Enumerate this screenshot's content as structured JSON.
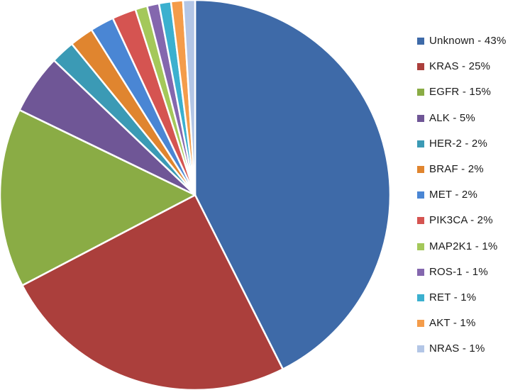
{
  "chart_data": {
    "type": "pie",
    "start_angle_deg": 0,
    "direction": "clockwise",
    "legend_position": "right",
    "slices": [
      {
        "label": "Unknown - 43%",
        "category": "Unknown",
        "value": 43,
        "color": "#3e6aa8"
      },
      {
        "label": "KRAS - 25%",
        "category": "KRAS",
        "value": 25,
        "color": "#ab3f3c"
      },
      {
        "label": "EGFR - 15%",
        "category": "EGFR",
        "value": 15,
        "color": "#8aac45"
      },
      {
        "label": "ALK - 5%",
        "category": "ALK",
        "value": 5,
        "color": "#6f5696"
      },
      {
        "label": "HER-2 - 2%",
        "category": "HER-2",
        "value": 2,
        "color": "#3b9ab5"
      },
      {
        "label": "BRAF - 2%",
        "category": "BRAF",
        "value": 2,
        "color": "#e0852f"
      },
      {
        "label": "MET - 2%",
        "category": "MET",
        "value": 2,
        "color": "#4a86d4"
      },
      {
        "label": "PIK3CA - 2%",
        "category": "PIK3CA",
        "value": 2,
        "color": "#d55451"
      },
      {
        "label": "MAP2K1 - 1%",
        "category": "MAP2K1",
        "value": 1,
        "color": "#a4c85a"
      },
      {
        "label": "ROS-1 - 1%",
        "category": "ROS-1",
        "value": 1,
        "color": "#8467ae"
      },
      {
        "label": "RET - 1%",
        "category": "RET",
        "value": 1,
        "color": "#3bb0cf"
      },
      {
        "label": "AKT - 1%",
        "category": "AKT",
        "value": 1,
        "color": "#f49c4a"
      },
      {
        "label": "NRAS - 1%",
        "category": "NRAS",
        "value": 1,
        "color": "#b3c6e6"
      }
    ]
  }
}
